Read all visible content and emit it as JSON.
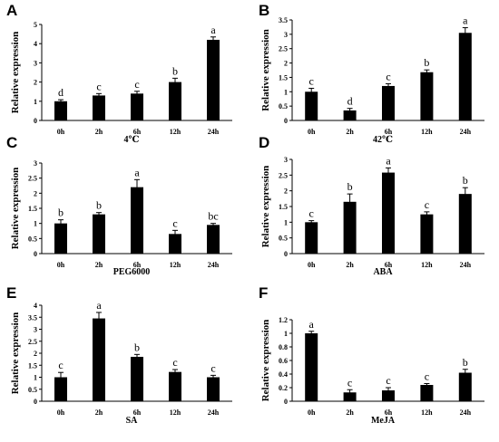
{
  "chart_data": [
    {
      "panel": "A",
      "type": "bar",
      "ylabel": "Relative expression",
      "xlabel": "4℃",
      "categories": [
        "0h",
        "2h",
        "6h",
        "12h",
        "24h"
      ],
      "values": [
        1.0,
        1.3,
        1.4,
        2.0,
        4.2
      ],
      "errors": [
        0.08,
        0.1,
        0.12,
        0.2,
        0.15
      ],
      "letters": [
        "d",
        "c",
        "c",
        "b",
        "a"
      ],
      "ylim": [
        0,
        5
      ],
      "yticks": [
        "0",
        "1",
        "2",
        "3",
        "4",
        "5"
      ],
      "ytick_values": [
        0,
        1,
        2,
        3,
        4,
        5
      ]
    },
    {
      "panel": "B",
      "type": "bar",
      "ylabel": "Relative expression",
      "xlabel": "42℃",
      "categories": [
        "0h",
        "2h",
        "6h",
        "12h",
        "24h"
      ],
      "values": [
        1.0,
        0.35,
        1.2,
        1.68,
        3.05
      ],
      "errors": [
        0.12,
        0.07,
        0.08,
        0.08,
        0.18
      ],
      "letters": [
        "c",
        "d",
        "c",
        "b",
        "a"
      ],
      "ylim": [
        0,
        3.5
      ],
      "yticks": [
        "0",
        "0.5",
        "1",
        "1.5",
        "2",
        "2.5",
        "3",
        "3.5"
      ],
      "ytick_values": [
        0,
        0.5,
        1,
        1.5,
        2,
        2.5,
        3,
        3.5
      ]
    },
    {
      "panel": "C",
      "type": "bar",
      "ylabel": "Relative expression",
      "xlabel": "PEG6000",
      "categories": [
        "0h",
        "2h",
        "6h",
        "12h",
        "24h"
      ],
      "values": [
        1.0,
        1.3,
        2.2,
        0.65,
        0.95
      ],
      "errors": [
        0.12,
        0.06,
        0.25,
        0.12,
        0.05
      ],
      "letters": [
        "b",
        "b",
        "a",
        "c",
        "bc"
      ],
      "ylim": [
        0,
        3
      ],
      "yticks": [
        "0",
        "0.5",
        "1",
        "1.5",
        "2",
        "2.5",
        "3"
      ],
      "ytick_values": [
        0,
        0.5,
        1,
        1.5,
        2,
        2.5,
        3
      ]
    },
    {
      "panel": "D",
      "type": "bar",
      "ylabel": "Relative expression",
      "xlabel": "ABA",
      "categories": [
        "0h",
        "2h",
        "6h",
        "12h",
        "24h"
      ],
      "values": [
        1.0,
        1.65,
        2.58,
        1.25,
        1.9
      ],
      "errors": [
        0.05,
        0.25,
        0.15,
        0.08,
        0.2
      ],
      "letters": [
        "c",
        "b",
        "a",
        "c",
        "b"
      ],
      "ylim": [
        0,
        3
      ],
      "yticks": [
        "0",
        "0.5",
        "1",
        "1.5",
        "2",
        "2.5",
        "3"
      ],
      "ytick_values": [
        0,
        0.5,
        1,
        1.5,
        2,
        2.5,
        3
      ]
    },
    {
      "panel": "E",
      "type": "bar",
      "ylabel": "Relative expression",
      "xlabel": "SA",
      "categories": [
        "0h",
        "2h",
        "6h",
        "12h",
        "24h"
      ],
      "values": [
        1.0,
        3.45,
        1.85,
        1.22,
        1.0
      ],
      "errors": [
        0.2,
        0.25,
        0.1,
        0.1,
        0.08
      ],
      "letters": [
        "c",
        "a",
        "b",
        "c",
        "c"
      ],
      "ylim": [
        0,
        4
      ],
      "yticks": [
        "0",
        "0.5",
        "1",
        "1.5",
        "2",
        "2.5",
        "3",
        "3.5",
        "4"
      ],
      "ytick_values": [
        0,
        0.5,
        1,
        1.5,
        2,
        2.5,
        3,
        3.5,
        4
      ]
    },
    {
      "panel": "F",
      "type": "bar",
      "ylabel": "Relative expression",
      "xlabel": "MeJA",
      "categories": [
        "0h",
        "2h",
        "6h",
        "12h",
        "24h"
      ],
      "values": [
        1.0,
        0.13,
        0.16,
        0.24,
        0.42
      ],
      "errors": [
        0.03,
        0.04,
        0.04,
        0.02,
        0.05
      ],
      "letters": [
        "a",
        "c",
        "c",
        "c",
        "b"
      ],
      "ylim": [
        0,
        1.2
      ],
      "yticks": [
        "0",
        "0.2",
        "0.4",
        "0.6",
        "0.8",
        "1",
        "1.2"
      ],
      "ytick_values": [
        0,
        0.2,
        0.4,
        0.6,
        0.8,
        1.0,
        1.2
      ]
    }
  ]
}
